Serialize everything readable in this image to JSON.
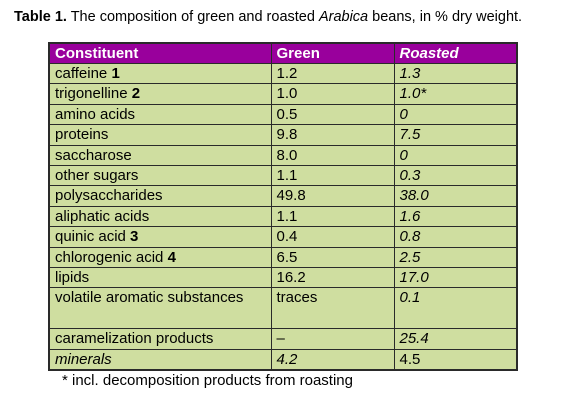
{
  "caption": {
    "label": "Table 1.",
    "text_before": " The composition of green and roasted ",
    "italic": "Arabica",
    "text_after": " beans, in % dry weight."
  },
  "table": {
    "headers": [
      "Constituent",
      "Green",
      "Roasted"
    ],
    "rows": [
      {
        "name": "caffeine ",
        "num": "1",
        "green": "1.2",
        "roasted": "1.3"
      },
      {
        "name": "trigonelline ",
        "num": "2",
        "green": "1.0",
        "roasted": "1.0*"
      },
      {
        "name": "amino acids",
        "num": "",
        "green": "0.5",
        "roasted": "0"
      },
      {
        "name": "proteins",
        "num": "",
        "green": "9.8",
        "roasted": "7.5"
      },
      {
        "name": "saccharose",
        "num": "",
        "green": "8.0",
        "roasted": "0"
      },
      {
        "name": "other sugars",
        "num": "",
        "green": "1.1",
        "roasted": "0.3"
      },
      {
        "name": "polysaccharides",
        "num": "",
        "green": "49.8",
        "roasted": "38.0"
      },
      {
        "name": "aliphatic acids",
        "num": "",
        "green": "1.1",
        "roasted": "1.6"
      },
      {
        "name": "quinic acid ",
        "num": "3",
        "green": "0.4",
        "roasted": "0.8"
      },
      {
        "name": "chlorogenic acid ",
        "num": "4",
        "green": "6.5",
        "roasted": "2.5"
      },
      {
        "name": "lipids",
        "num": "",
        "green": "16.2",
        "roasted": "17.0"
      },
      {
        "name": "volatile aromatic substances",
        "num": "",
        "green": "traces",
        "roasted": "0.1"
      },
      {
        "name": "caramelization products",
        "num": "",
        "green": "–",
        "roasted": "25.4"
      },
      {
        "name": "minerals",
        "num": "",
        "green": "4.2",
        "roasted": "4.5"
      }
    ]
  },
  "footnote": "* incl. decomposition products from roasting",
  "colors": {
    "header_bg": "#99009c",
    "cell_bg": "#cfdea0"
  }
}
